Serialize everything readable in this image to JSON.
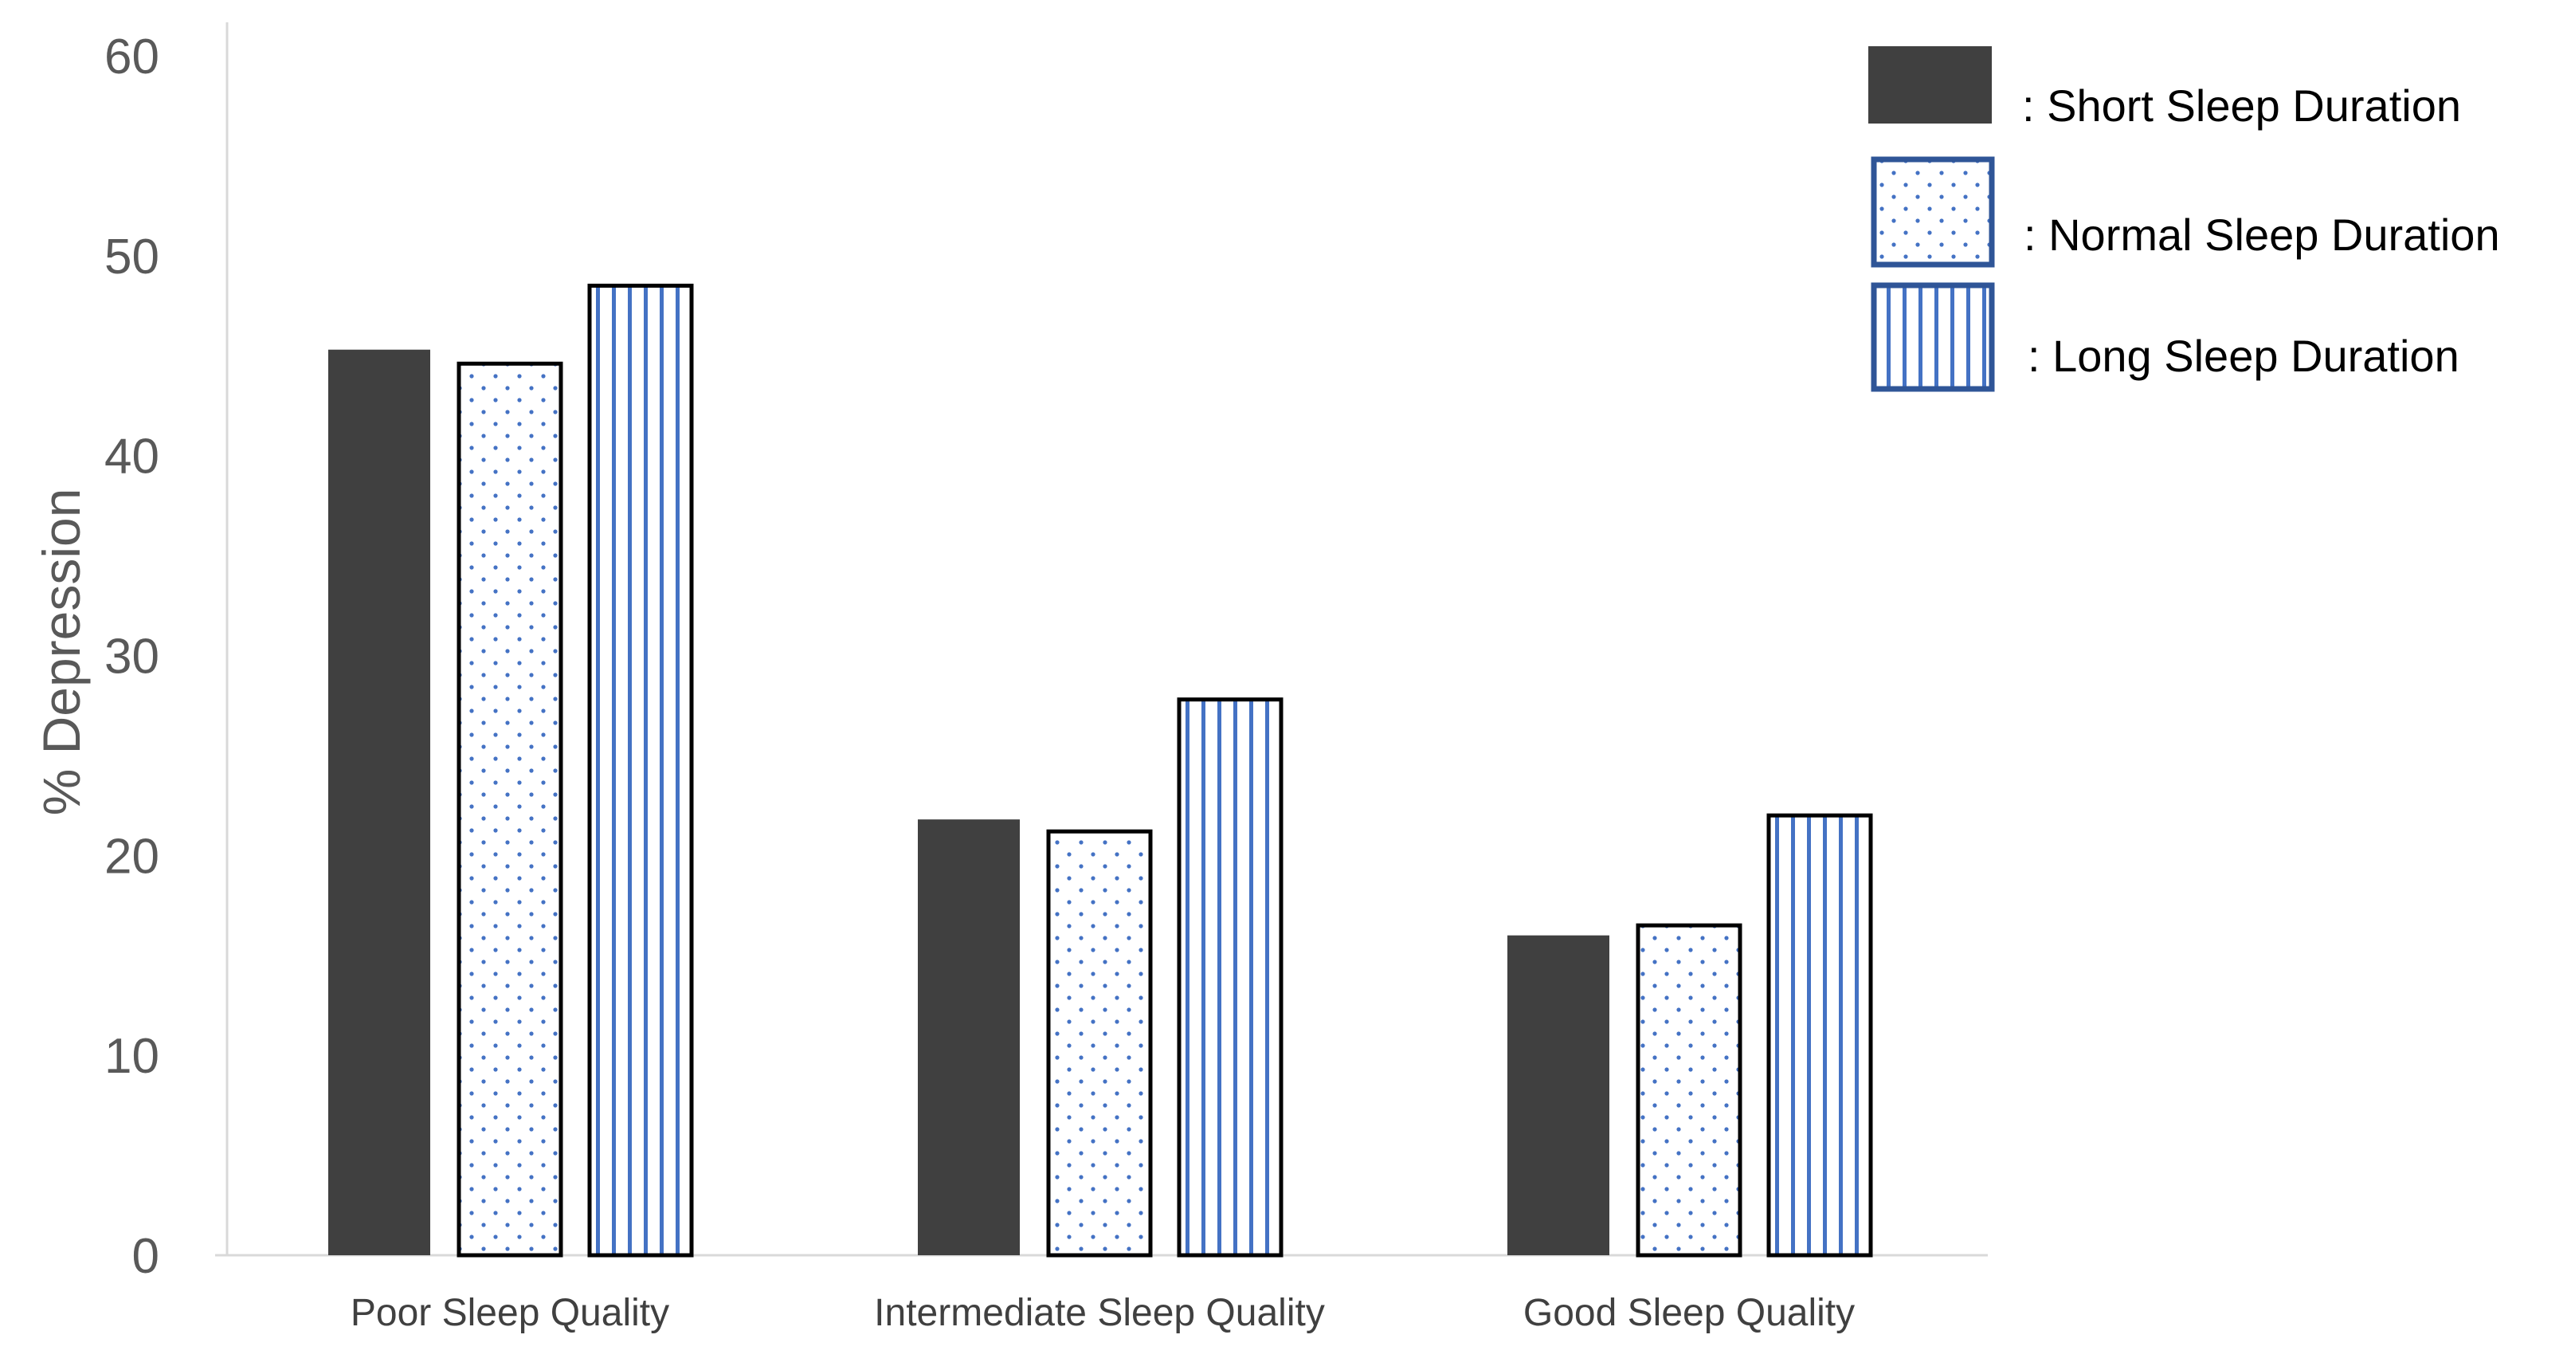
{
  "chart_data": {
    "type": "bar",
    "title": "",
    "xlabel": "",
    "ylabel": "% Depression",
    "ylim": [
      0,
      60
    ],
    "yticks": [
      0,
      10,
      20,
      30,
      40,
      50,
      60
    ],
    "grid": false,
    "legend_position": "top-right",
    "categories": [
      "Poor Sleep Quality",
      "Intermediate Sleep Quality",
      "Good Sleep Quality"
    ],
    "series": [
      {
        "name": "Short Sleep Duration",
        "legend_label": ": Short Sleep Duration",
        "pattern": "solid",
        "values": [
          45.3,
          21.8,
          16.0
        ]
      },
      {
        "name": "Normal Sleep Duration",
        "legend_label": ": Normal Sleep Duration",
        "pattern": "dots",
        "values": [
          44.6,
          21.2,
          16.5
        ]
      },
      {
        "name": "Long Sleep Duration",
        "legend_label": ": Long Sleep Duration",
        "pattern": "vertical-stripes",
        "values": [
          48.5,
          27.8,
          22.0
        ]
      }
    ]
  },
  "colors": {
    "solid_fill": "#404040",
    "pattern_color": "#4472c4",
    "legend_border": "#2f5597",
    "bar_outline": "#000000",
    "axis": "#d9d9d9",
    "tick_text": "#595959",
    "category_text": "#404040"
  }
}
